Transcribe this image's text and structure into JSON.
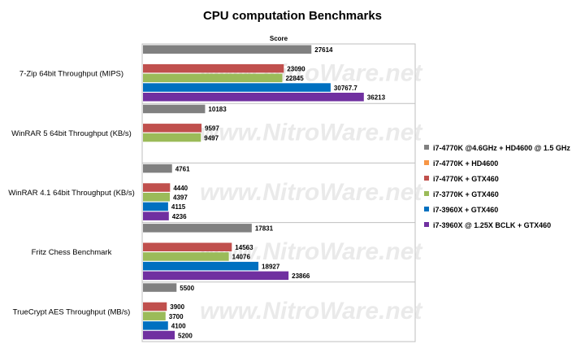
{
  "chart_data": {
    "type": "bar",
    "orientation": "horizontal",
    "title": "CPU computation Benchmarks",
    "xlabel": "Score",
    "xlim": [
      0,
      44500
    ],
    "grid": false,
    "legend_position": "right",
    "watermark": "www.NitroWare.net",
    "categories": [
      "7-Zip 64bit Throughput (MIPS)",
      "WinRAR 5 64bit Throughput (KB/s)",
      "WinRAR 4.1 64bit Throughput (KB/s)",
      "Fritz Chess Benchmark",
      "TrueCrypt AES Throughput (MB/s)"
    ],
    "series": [
      {
        "name": "i7-4770K @4.6GHz + HD4600 @ 1.5 GHz",
        "color": "#808080",
        "values": [
          27614,
          10183,
          4761,
          17831,
          5500
        ],
        "labels": [
          "27614",
          "10183",
          "4761",
          "17831",
          "5500"
        ]
      },
      {
        "name": "i7-4770K + HD4600",
        "color": "#f79646",
        "values": [
          null,
          null,
          null,
          null,
          null
        ],
        "labels": [
          null,
          null,
          null,
          null,
          null
        ]
      },
      {
        "name": "i7-4770K + GTX460",
        "color": "#c0504d",
        "values": [
          23090,
          9597,
          4440,
          14563,
          3900
        ],
        "labels": [
          "23090",
          "9597",
          "4440",
          "14563",
          "3900"
        ]
      },
      {
        "name": "i7-3770K + GTX460",
        "color": "#9bbb59",
        "values": [
          22845,
          9497,
          4397,
          14076,
          3700
        ],
        "labels": [
          "22845",
          "9497",
          "4397",
          "14076",
          "3700"
        ]
      },
      {
        "name": "i7-3960X + GTX460",
        "color": "#0070c0",
        "values": [
          30767.7,
          null,
          4115,
          18927,
          4100
        ],
        "labels": [
          "30767.7",
          null,
          "4115",
          "18927",
          "4100"
        ]
      },
      {
        "name": "i7-3960X @ 1.25X BCLK + GTX460",
        "color": "#7030a0",
        "values": [
          36213,
          null,
          4236,
          23866,
          5200
        ],
        "labels": [
          "36213",
          null,
          "4236",
          "23866",
          "5200"
        ]
      }
    ]
  }
}
